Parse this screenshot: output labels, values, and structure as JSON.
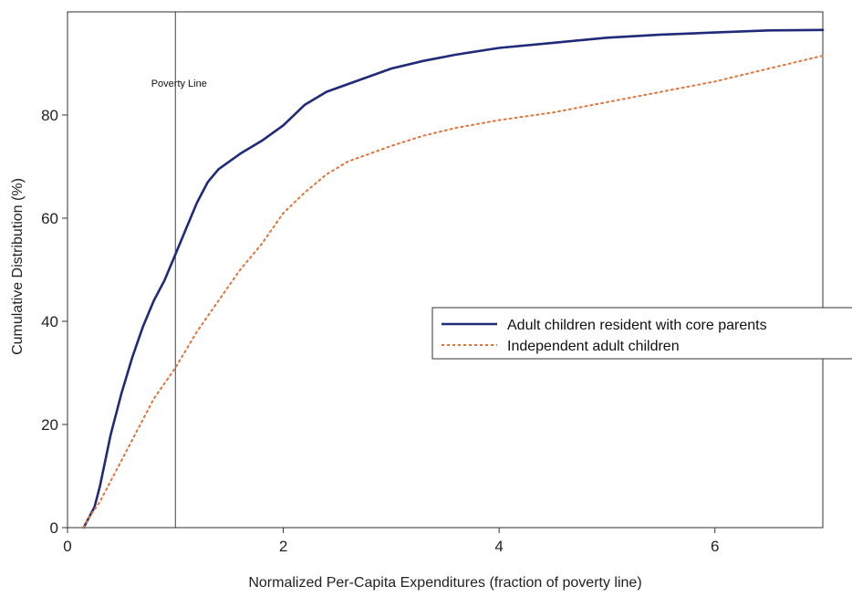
{
  "chart_data": {
    "type": "line",
    "title": "",
    "xlabel": "Normalized Per-Capita Expenditures (fraction of poverty line)",
    "ylabel": "Cumulative Distribution (%)",
    "xlim": [
      0,
      7
    ],
    "ylim": [
      0,
      100
    ],
    "xticks": [
      0,
      2,
      4,
      6
    ],
    "yticks": [
      0,
      20,
      40,
      60,
      80
    ],
    "grid": false,
    "legend_position": "right",
    "reference_line": {
      "x": 1,
      "label": "Poverty Line"
    },
    "series": [
      {
        "name": "Adult children resident with core parents",
        "color": "#1f2a78",
        "style": "solid",
        "x": [
          0.15,
          0.2,
          0.25,
          0.3,
          0.35,
          0.4,
          0.5,
          0.6,
          0.7,
          0.8,
          0.9,
          1.0,
          1.1,
          1.2,
          1.3,
          1.4,
          1.5,
          1.6,
          1.8,
          2.0,
          2.2,
          2.4,
          2.6,
          2.8,
          3.0,
          3.3,
          3.6,
          4.0,
          4.5,
          5.0,
          5.5,
          6.0,
          6.5,
          7.0
        ],
        "y": [
          0,
          2,
          4,
          8,
          13,
          18,
          26,
          33,
          39,
          44,
          48,
          53,
          58,
          63,
          67,
          69.5,
          71,
          72.5,
          75,
          78,
          82,
          84.5,
          86,
          87.5,
          89,
          90.5,
          91.7,
          93,
          94,
          95,
          95.6,
          96,
          96.4,
          96.5
        ]
      },
      {
        "name": "Independent adult children",
        "color": "#e0743a",
        "style": "dotted",
        "x": [
          0.15,
          0.2,
          0.3,
          0.4,
          0.5,
          0.6,
          0.7,
          0.8,
          0.9,
          1.0,
          1.2,
          1.4,
          1.6,
          1.8,
          2.0,
          2.2,
          2.4,
          2.6,
          2.8,
          3.0,
          3.3,
          3.6,
          4.0,
          4.5,
          5.0,
          5.5,
          6.0,
          6.5,
          7.0
        ],
        "y": [
          0,
          2,
          5,
          9,
          13,
          17,
          21,
          25,
          28,
          31,
          38,
          44,
          50,
          55,
          61,
          65,
          68.5,
          71,
          72.5,
          74,
          76,
          77.5,
          79,
          80.5,
          82.5,
          84.5,
          86.5,
          89,
          91.5
        ]
      }
    ]
  }
}
